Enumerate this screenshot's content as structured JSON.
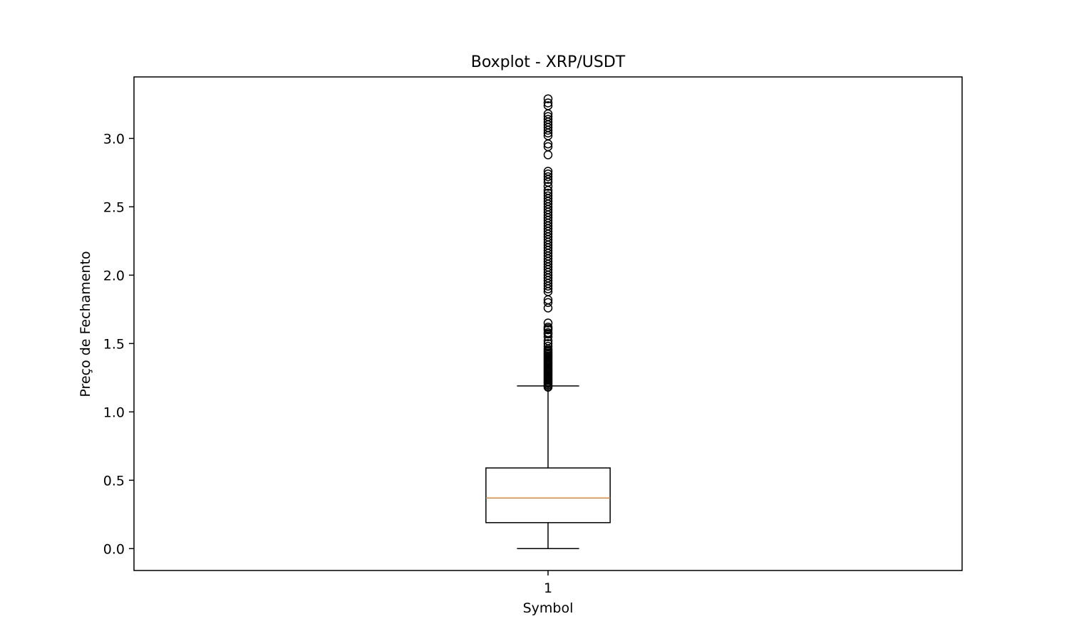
{
  "chart_data": {
    "type": "boxplot",
    "title": "Boxplot - XRP/USDT",
    "xlabel": "Symbol",
    "ylabel": "Preço de Fechamento",
    "categories": [
      "1"
    ],
    "ylim": [
      -0.16,
      3.45
    ],
    "yticks": [
      0.0,
      0.5,
      1.0,
      1.5,
      2.0,
      2.5,
      3.0
    ],
    "ytick_labels": [
      "0.0",
      "0.5",
      "1.0",
      "1.5",
      "2.0",
      "2.5",
      "3.0"
    ],
    "grid": false,
    "boxes": [
      {
        "category": "1",
        "whisker_low": 0.0,
        "q1": 0.19,
        "median": 0.37,
        "q3": 0.59,
        "whisker_high": 1.19,
        "outliers": [
          1.18,
          1.19,
          1.2,
          1.21,
          1.22,
          1.23,
          1.24,
          1.25,
          1.26,
          1.27,
          1.28,
          1.29,
          1.3,
          1.31,
          1.32,
          1.33,
          1.34,
          1.35,
          1.36,
          1.37,
          1.38,
          1.39,
          1.4,
          1.41,
          1.42,
          1.43,
          1.44,
          1.45,
          1.46,
          1.48,
          1.5,
          1.52,
          1.55,
          1.57,
          1.58,
          1.6,
          1.61,
          1.62,
          1.65,
          1.76,
          1.8,
          1.82,
          1.88,
          1.9,
          1.92,
          1.94,
          1.96,
          1.98,
          2.0,
          2.02,
          2.04,
          2.06,
          2.08,
          2.1,
          2.12,
          2.14,
          2.16,
          2.18,
          2.2,
          2.22,
          2.24,
          2.26,
          2.28,
          2.3,
          2.32,
          2.34,
          2.36,
          2.38,
          2.4,
          2.42,
          2.44,
          2.46,
          2.48,
          2.5,
          2.52,
          2.54,
          2.56,
          2.58,
          2.6,
          2.62,
          2.65,
          2.68,
          2.7,
          2.72,
          2.74,
          2.76,
          2.88,
          2.94,
          2.96,
          3.02,
          3.04,
          3.06,
          3.08,
          3.1,
          3.12,
          3.14,
          3.16,
          3.18,
          3.24,
          3.26,
          3.29
        ]
      }
    ],
    "colors": {
      "box": "#000000",
      "median": "#ff7f0e",
      "outlier": "#000000",
      "axes": "#000000"
    }
  }
}
